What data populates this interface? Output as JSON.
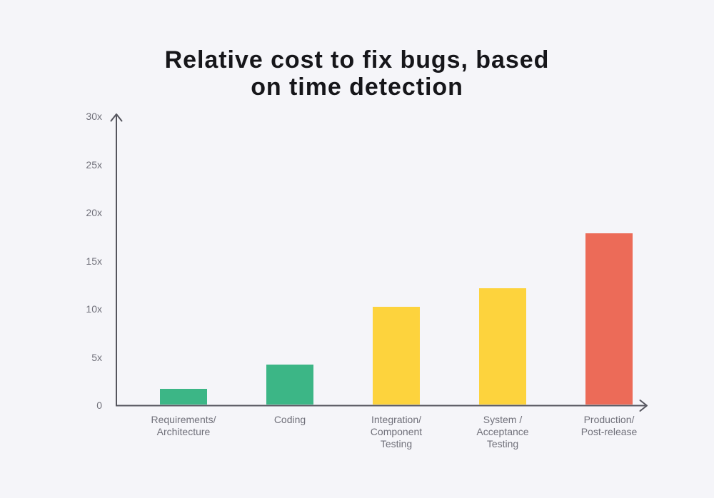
{
  "title": {
    "line1": "Relative cost to fix bugs, based",
    "line2": "on time detection"
  },
  "chart_data": {
    "type": "bar",
    "title": "Relative cost to fix bugs, based on time detection",
    "categories": [
      [
        "Requirements/",
        "Architecture"
      ],
      [
        "Coding"
      ],
      [
        "Integration/",
        "Component",
        "Testing"
      ],
      [
        "System /",
        "Acceptance",
        "Testing"
      ],
      [
        "Production/",
        "Post-release"
      ]
    ],
    "values": [
      1.7,
      4.2,
      10.2,
      12.1,
      17.8
    ],
    "bar_colors": [
      "#3CB686",
      "#3CB686",
      "#FDD33D",
      "#FDD33D",
      "#EC6B58"
    ],
    "yticks": [
      {
        "value": 0,
        "label": "0"
      },
      {
        "value": 5,
        "label": "5x"
      },
      {
        "value": 10,
        "label": "10x"
      },
      {
        "value": 15,
        "label": "15x"
      },
      {
        "value": 20,
        "label": "20x"
      },
      {
        "value": 25,
        "label": "25x"
      },
      {
        "value": 30,
        "label": "30x"
      }
    ],
    "ylim": [
      0,
      30
    ],
    "xlabel": "",
    "ylabel": "",
    "grid": false,
    "legend": false,
    "colors": {
      "background": "#F5F5F9",
      "axis": "#55555E",
      "tick_label": "#70707A",
      "category_label": "#70707A",
      "title": "#16161A"
    }
  }
}
